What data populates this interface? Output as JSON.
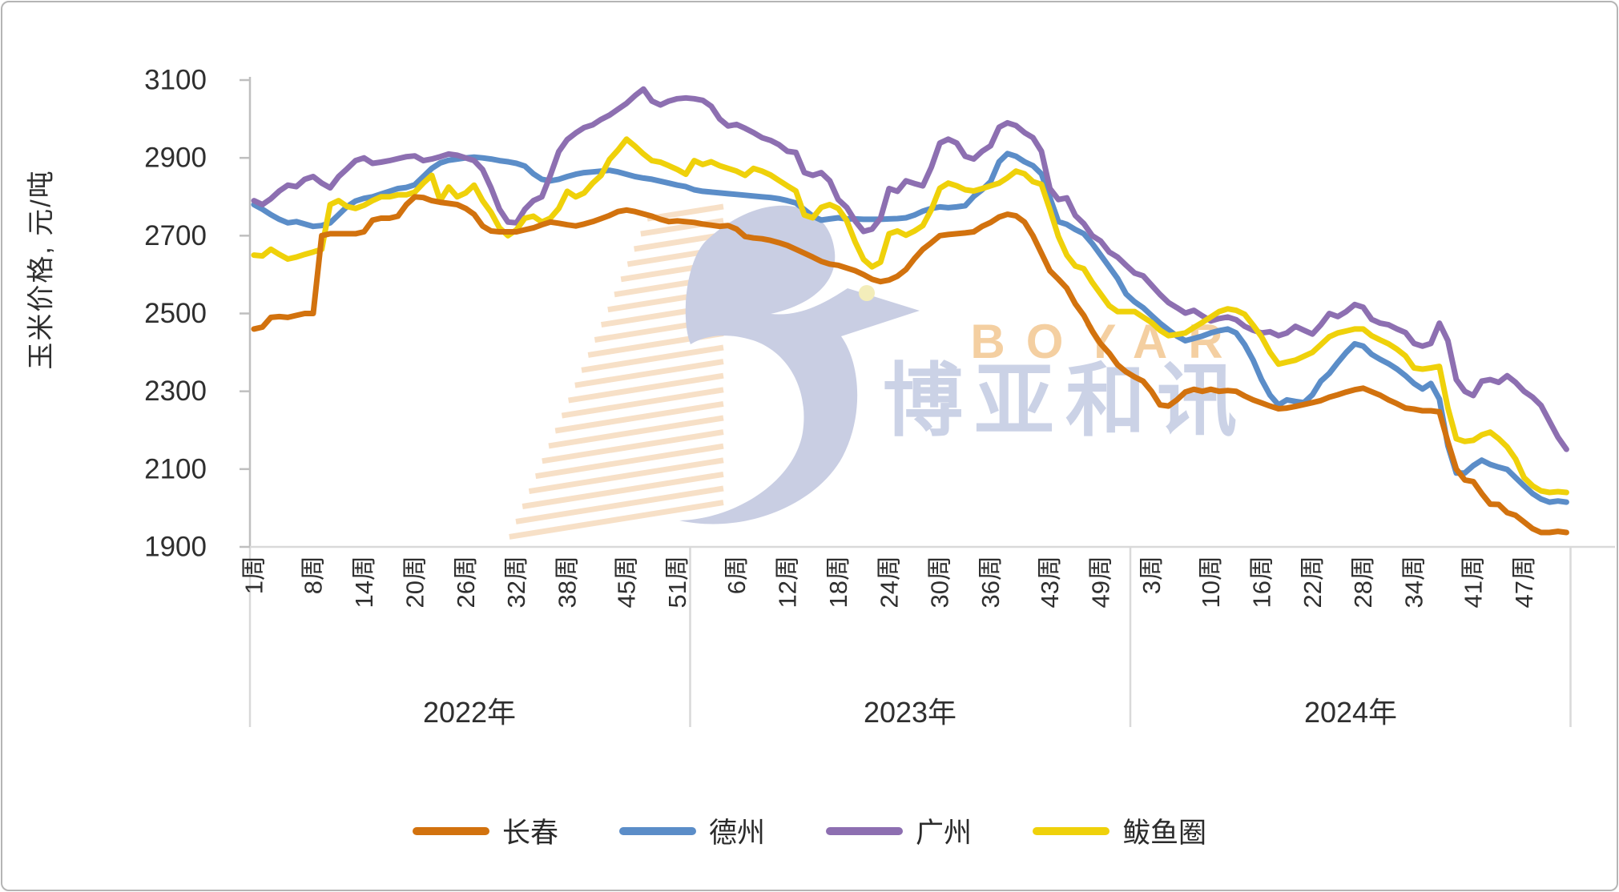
{
  "chart_data": {
    "type": "line",
    "title": "",
    "ylabel": "玉米价格, 元/吨",
    "ylim": [
      1900,
      3100
    ],
    "yticks": [
      3100,
      2900,
      2700,
      2500,
      2300,
      2100,
      1900
    ],
    "grid": "off",
    "legend_position": "bottom",
    "x_axis": {
      "unit": "周",
      "years": [
        {
          "label": "2022年",
          "ticks": [
            {
              "label": "1周",
              "week": 1
            },
            {
              "label": "8周",
              "week": 8
            },
            {
              "label": "14周",
              "week": 14
            },
            {
              "label": "20周",
              "week": 20
            },
            {
              "label": "26周",
              "week": 26
            },
            {
              "label": "32周",
              "week": 32
            },
            {
              "label": "38周",
              "week": 38
            },
            {
              "label": "45周",
              "week": 45
            },
            {
              "label": "51周",
              "week": 51
            }
          ]
        },
        {
          "label": "2023年",
          "ticks": [
            {
              "label": "6周",
              "week": 6
            },
            {
              "label": "12周",
              "week": 12
            },
            {
              "label": "18周",
              "week": 18
            },
            {
              "label": "24周",
              "week": 24
            },
            {
              "label": "30周",
              "week": 30
            },
            {
              "label": "36周",
              "week": 36
            },
            {
              "label": "43周",
              "week": 43
            },
            {
              "label": "49周",
              "week": 49
            }
          ]
        },
        {
          "label": "2024年",
          "ticks": [
            {
              "label": "3周",
              "week": 3
            },
            {
              "label": "10周",
              "week": 10
            },
            {
              "label": "16周",
              "week": 16
            },
            {
              "label": "22周",
              "week": 22
            },
            {
              "label": "28周",
              "week": 28
            },
            {
              "label": "34周",
              "week": 34
            },
            {
              "label": "41周",
              "week": 41
            },
            {
              "label": "47周",
              "week": 47
            }
          ]
        }
      ]
    },
    "series": [
      {
        "name": "长春",
        "color": "#D2720E",
        "values": [
          2460,
          2465,
          2490,
          2492,
          2490,
          2495,
          2500,
          2500,
          2700,
          2705,
          2705,
          2705,
          2705,
          2710,
          2740,
          2745,
          2745,
          2750,
          2780,
          2800,
          2798,
          2790,
          2786,
          2783,
          2780,
          2770,
          2755,
          2725,
          2712,
          2710,
          2710,
          2710,
          2715,
          2720,
          2728,
          2735,
          2732,
          2728,
          2725,
          2730,
          2736,
          2744,
          2752,
          2762,
          2766,
          2762,
          2756,
          2750,
          2742,
          2736,
          2738,
          2736,
          2734,
          2730,
          2727,
          2724,
          2726,
          2717,
          2698,
          2694,
          2692,
          2688,
          2682,
          2675,
          2665,
          2655,
          2645,
          2634,
          2627,
          2624,
          2617,
          2610,
          2600,
          2588,
          2582,
          2586,
          2596,
          2613,
          2641,
          2665,
          2682,
          2700,
          2703,
          2705,
          2707,
          2710,
          2724,
          2734,
          2748,
          2755,
          2751,
          2735,
          2700,
          2655,
          2610,
          2588,
          2565,
          2525,
          2495,
          2455,
          2422,
          2398,
          2368,
          2350,
          2337,
          2326,
          2300,
          2265,
          2262,
          2278,
          2298,
          2305,
          2300,
          2305,
          2300,
          2302,
          2300,
          2288,
          2278,
          2270,
          2262,
          2255,
          2257,
          2261,
          2266,
          2271,
          2276,
          2285,
          2291,
          2298,
          2304,
          2308,
          2299,
          2290,
          2278,
          2268,
          2257,
          2254,
          2250,
          2250,
          2247,
          2170,
          2100,
          2072,
          2068,
          2037,
          2010,
          2009,
          1988,
          1981,
          1964,
          1947,
          1937,
          1937,
          1940,
          1937
        ]
      },
      {
        "name": "德州",
        "color": "#5B8DC8",
        "values": [
          2780,
          2768,
          2754,
          2742,
          2733,
          2736,
          2730,
          2724,
          2726,
          2733,
          2754,
          2775,
          2789,
          2796,
          2800,
          2807,
          2814,
          2821,
          2824,
          2831,
          2852,
          2873,
          2887,
          2894,
          2897,
          2900,
          2902,
          2900,
          2897,
          2893,
          2890,
          2886,
          2879,
          2859,
          2845,
          2841,
          2845,
          2852,
          2858,
          2862,
          2864,
          2866,
          2868,
          2864,
          2858,
          2852,
          2848,
          2845,
          2840,
          2835,
          2830,
          2826,
          2818,
          2814,
          2812,
          2810,
          2808,
          2806,
          2804,
          2802,
          2800,
          2798,
          2795,
          2790,
          2784,
          2767,
          2750,
          2740,
          2743,
          2746,
          2743,
          2743,
          2742,
          2742,
          2742,
          2743,
          2744,
          2746,
          2753,
          2763,
          2770,
          2774,
          2772,
          2774,
          2777,
          2801,
          2818,
          2839,
          2890,
          2911,
          2904,
          2890,
          2880,
          2859,
          2798,
          2736,
          2729,
          2716,
          2705,
          2680,
          2650,
          2620,
          2590,
          2550,
          2530,
          2515,
          2495,
          2475,
          2458,
          2442,
          2430,
          2436,
          2442,
          2450,
          2456,
          2460,
          2450,
          2420,
          2380,
          2330,
          2290,
          2265,
          2278,
          2274,
          2271,
          2291,
          2326,
          2346,
          2374,
          2400,
          2422,
          2416,
          2395,
          2382,
          2371,
          2357,
          2340,
          2320,
          2306,
          2320,
          2280,
          2160,
          2090,
          2090,
          2109,
          2123,
          2112,
          2105,
          2099,
          2078,
          2057,
          2037,
          2023,
          2015,
          2018,
          2015
        ]
      },
      {
        "name": "广州",
        "color": "#8D6FB1",
        "values": [
          2790,
          2780,
          2795,
          2815,
          2830,
          2826,
          2845,
          2852,
          2835,
          2823,
          2852,
          2872,
          2893,
          2900,
          2886,
          2889,
          2893,
          2898,
          2903,
          2905,
          2893,
          2897,
          2903,
          2910,
          2907,
          2900,
          2893,
          2870,
          2823,
          2768,
          2735,
          2733,
          2768,
          2790,
          2800,
          2855,
          2916,
          2947,
          2964,
          2978,
          2985,
          2999,
          3010,
          3025,
          3040,
          3060,
          3077,
          3046,
          3036,
          3046,
          3052,
          3054,
          3052,
          3048,
          3033,
          3000,
          2982,
          2986,
          2976,
          2965,
          2952,
          2945,
          2934,
          2917,
          2914,
          2862,
          2855,
          2862,
          2841,
          2793,
          2773,
          2738,
          2711,
          2717,
          2745,
          2821,
          2814,
          2841,
          2834,
          2828,
          2876,
          2938,
          2948,
          2938,
          2904,
          2897,
          2917,
          2931,
          2979,
          2990,
          2983,
          2965,
          2952,
          2917,
          2821,
          2793,
          2797,
          2752,
          2731,
          2700,
          2686,
          2658,
          2645,
          2624,
          2604,
          2597,
          2573,
          2549,
          2528,
          2515,
          2501,
          2508,
          2494,
          2481,
          2487,
          2491,
          2484,
          2467,
          2457,
          2450,
          2453,
          2443,
          2450,
          2467,
          2457,
          2447,
          2471,
          2500,
          2492,
          2505,
          2523,
          2516,
          2485,
          2475,
          2471,
          2460,
          2451,
          2423,
          2416,
          2423,
          2475,
          2430,
          2330,
          2300,
          2289,
          2326,
          2330,
          2323,
          2340,
          2323,
          2300,
          2285,
          2264,
          2223,
          2182,
          2151
        ]
      },
      {
        "name": "鲅鱼圈",
        "color": "#EFD10A",
        "values": [
          2650,
          2648,
          2665,
          2652,
          2640,
          2645,
          2652,
          2658,
          2665,
          2780,
          2790,
          2775,
          2770,
          2778,
          2790,
          2800,
          2800,
          2805,
          2805,
          2812,
          2835,
          2855,
          2790,
          2825,
          2800,
          2810,
          2830,
          2790,
          2760,
          2720,
          2700,
          2715,
          2745,
          2750,
          2735,
          2745,
          2770,
          2814,
          2800,
          2810,
          2835,
          2855,
          2896,
          2920,
          2948,
          2930,
          2910,
          2893,
          2889,
          2880,
          2870,
          2858,
          2893,
          2883,
          2890,
          2880,
          2873,
          2866,
          2855,
          2873,
          2866,
          2856,
          2842,
          2828,
          2815,
          2753,
          2746,
          2773,
          2780,
          2770,
          2739,
          2684,
          2639,
          2620,
          2632,
          2705,
          2712,
          2701,
          2712,
          2726,
          2767,
          2822,
          2835,
          2828,
          2818,
          2815,
          2821,
          2828,
          2835,
          2849,
          2866,
          2859,
          2839,
          2832,
          2767,
          2698,
          2650,
          2622,
          2615,
          2580,
          2550,
          2520,
          2505,
          2505,
          2505,
          2491,
          2477,
          2457,
          2443,
          2446,
          2450,
          2464,
          2477,
          2491,
          2505,
          2512,
          2508,
          2498,
          2470,
          2440,
          2400,
          2370,
          2375,
          2380,
          2390,
          2400,
          2420,
          2440,
          2450,
          2455,
          2460,
          2460,
          2443,
          2432,
          2422,
          2408,
          2391,
          2360,
          2357,
          2360,
          2364,
          2257,
          2178,
          2171,
          2174,
          2188,
          2195,
          2178,
          2157,
          2126,
          2078,
          2057,
          2044,
          2040,
          2042,
          2040
        ]
      }
    ]
  },
  "watermark": {
    "text_cn": "博亚和讯",
    "text_en": "BOYAR",
    "logo_color": "#c9cee3",
    "stripe_color": "#f7ddc2",
    "text_cn_color": "#c3cbe2",
    "text_en_color": "#f2c48a"
  }
}
